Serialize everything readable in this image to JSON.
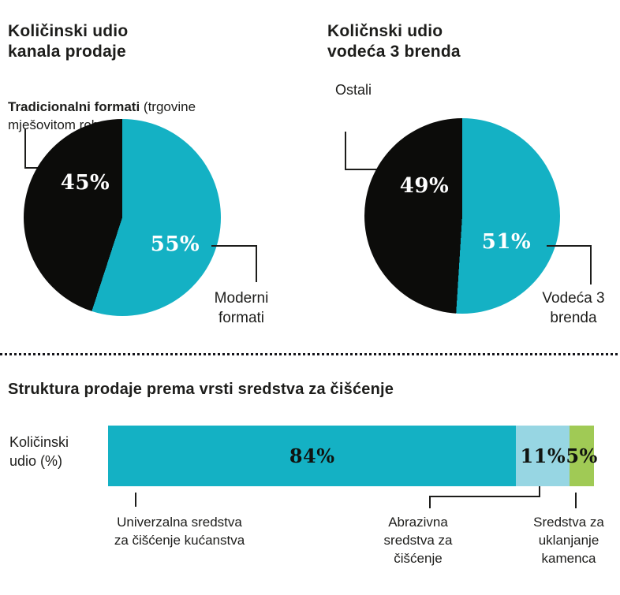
{
  "page": {
    "background": "#ffffff",
    "text_color": "#1d1d1b"
  },
  "colors": {
    "teal": "#14b1c4",
    "black_slice": "#0c0c0a",
    "light_blue": "#97d6e3",
    "green": "#a0ca55",
    "percent_white": "#ffffff",
    "percent_dark": "#10130f"
  },
  "chart_data": [
    {
      "type": "pie",
      "title": "Količinski udio\nkanala prodaje",
      "start_angle_deg": 0,
      "slices": [
        {
          "label": "Moderni formati",
          "value": 55,
          "display": "55%",
          "color": "#14b1c4"
        },
        {
          "label": "Tradicionalni formati (trgovine mješovitom robom)",
          "value": 45,
          "display": "45%",
          "color": "#0c0c0a"
        }
      ],
      "annotations": {
        "traditional_bold": "Tradicionalni formati",
        "traditional_rest": " (trgovine\nmješovitom robom)",
        "modern": "Moderni\nformati"
      }
    },
    {
      "type": "pie",
      "title": "Količnski udio\nvodeća 3 brenda",
      "start_angle_deg": 0,
      "slices": [
        {
          "label": "Vodeća 3 brenda",
          "value": 51,
          "display": "51%",
          "color": "#14b1c4"
        },
        {
          "label": "Ostali",
          "value": 49,
          "display": "49%",
          "color": "#0c0c0a"
        }
      ],
      "annotations": {
        "others": "Ostali",
        "leading": "Vodeća 3\nbrenda"
      }
    },
    {
      "type": "bar",
      "stacked": true,
      "orientation": "horizontal",
      "title": "Struktura prodaje prema vrsti sredstva za čišćenje",
      "axis_label": "Količinski\nudio (%)",
      "xlim": [
        0,
        100
      ],
      "segments": [
        {
          "label": "Univerzalna sredstva\nza čišćenje kućanstva",
          "value": 84,
          "display": "84%",
          "color": "#14b1c4"
        },
        {
          "label": "Abrazivna\nsredstva za\nčišćenje",
          "value": 11,
          "display": "11%",
          "color": "#97d6e3"
        },
        {
          "label": "Sredstva za\nuklanjanje\nkamenca",
          "value": 5,
          "display": "5%",
          "color": "#a0ca55"
        }
      ]
    }
  ]
}
